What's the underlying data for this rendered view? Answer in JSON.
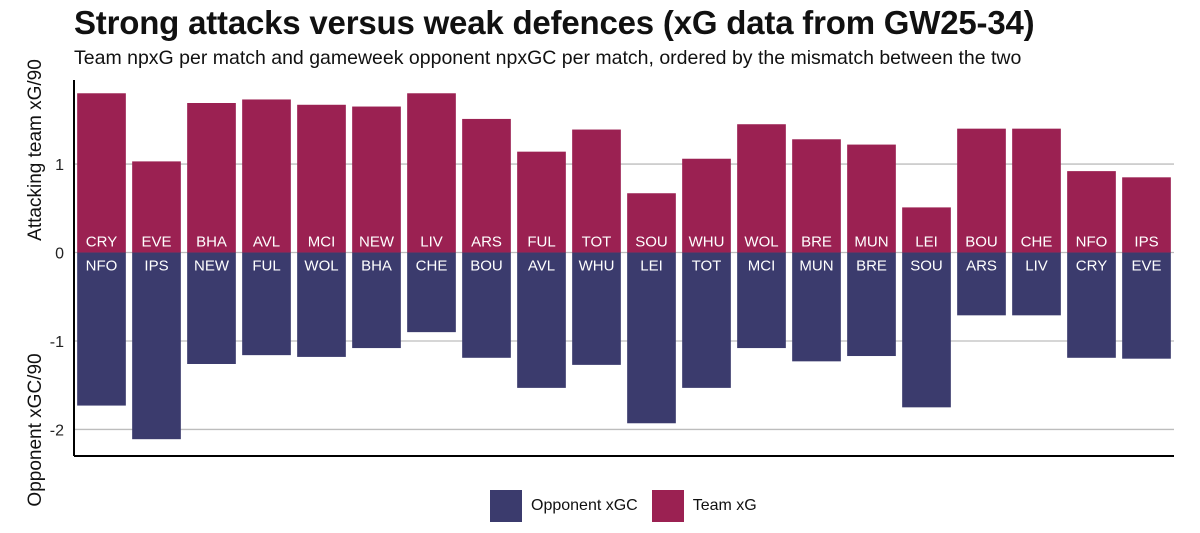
{
  "title": "Strong attacks versus weak defences (xG data from GW25-34)",
  "subtitle": "Team npxG per match and gameweek opponent npxGC per match, ordered by the mismatch between the two",
  "colors": {
    "team": "#9B2152",
    "opponent": "#3B3B6D",
    "grid": "#BDBDBD",
    "axis": "#000000"
  },
  "legend": {
    "opponent_label": "Opponent xGC",
    "team_label": "Team xG"
  },
  "chart_data": {
    "type": "bar",
    "title": "Strong attacks versus weak defences (xG data from GW25-34)",
    "subtitle": "Team npxG per match and gameweek opponent npxGC per match, ordered by the mismatch between the two",
    "ylabel_top": "Attacking team xG/90",
    "ylabel_bottom": "Opponent xGC/90",
    "ylim": [
      -2.3,
      1.95
    ],
    "yticks": [
      -2,
      -1,
      0,
      1
    ],
    "grid": true,
    "legend_position": "bottom",
    "categories": [
      "CRY",
      "EVE",
      "BHA",
      "AVL",
      "MCI",
      "NEW",
      "LIV",
      "ARS",
      "FUL",
      "TOT",
      "SOU",
      "WHU",
      "WOL",
      "BRE",
      "MUN",
      "LEI",
      "BOU",
      "CHE",
      "NFO",
      "IPS"
    ],
    "opponents": [
      "NFO",
      "IPS",
      "NEW",
      "FUL",
      "WOL",
      "BHA",
      "CHE",
      "BOU",
      "AVL",
      "WHU",
      "LEI",
      "TOT",
      "MCI",
      "MUN",
      "BRE",
      "SOU",
      "ARS",
      "LIV",
      "CRY",
      "EVE"
    ],
    "series": [
      {
        "name": "Team xG",
        "values": [
          1.8,
          1.03,
          1.69,
          1.73,
          1.67,
          1.65,
          1.8,
          1.51,
          1.14,
          1.39,
          0.67,
          1.06,
          1.45,
          1.28,
          1.22,
          0.51,
          1.4,
          1.4,
          0.92,
          0.85
        ]
      },
      {
        "name": "Opponent xGC",
        "values": [
          -1.73,
          -2.11,
          -1.26,
          -1.16,
          -1.18,
          -1.08,
          -0.9,
          -1.19,
          -1.53,
          -1.27,
          -1.93,
          -1.53,
          -1.08,
          -1.23,
          -1.17,
          -1.75,
          -0.71,
          -0.71,
          -1.19,
          -1.2
        ]
      }
    ]
  }
}
